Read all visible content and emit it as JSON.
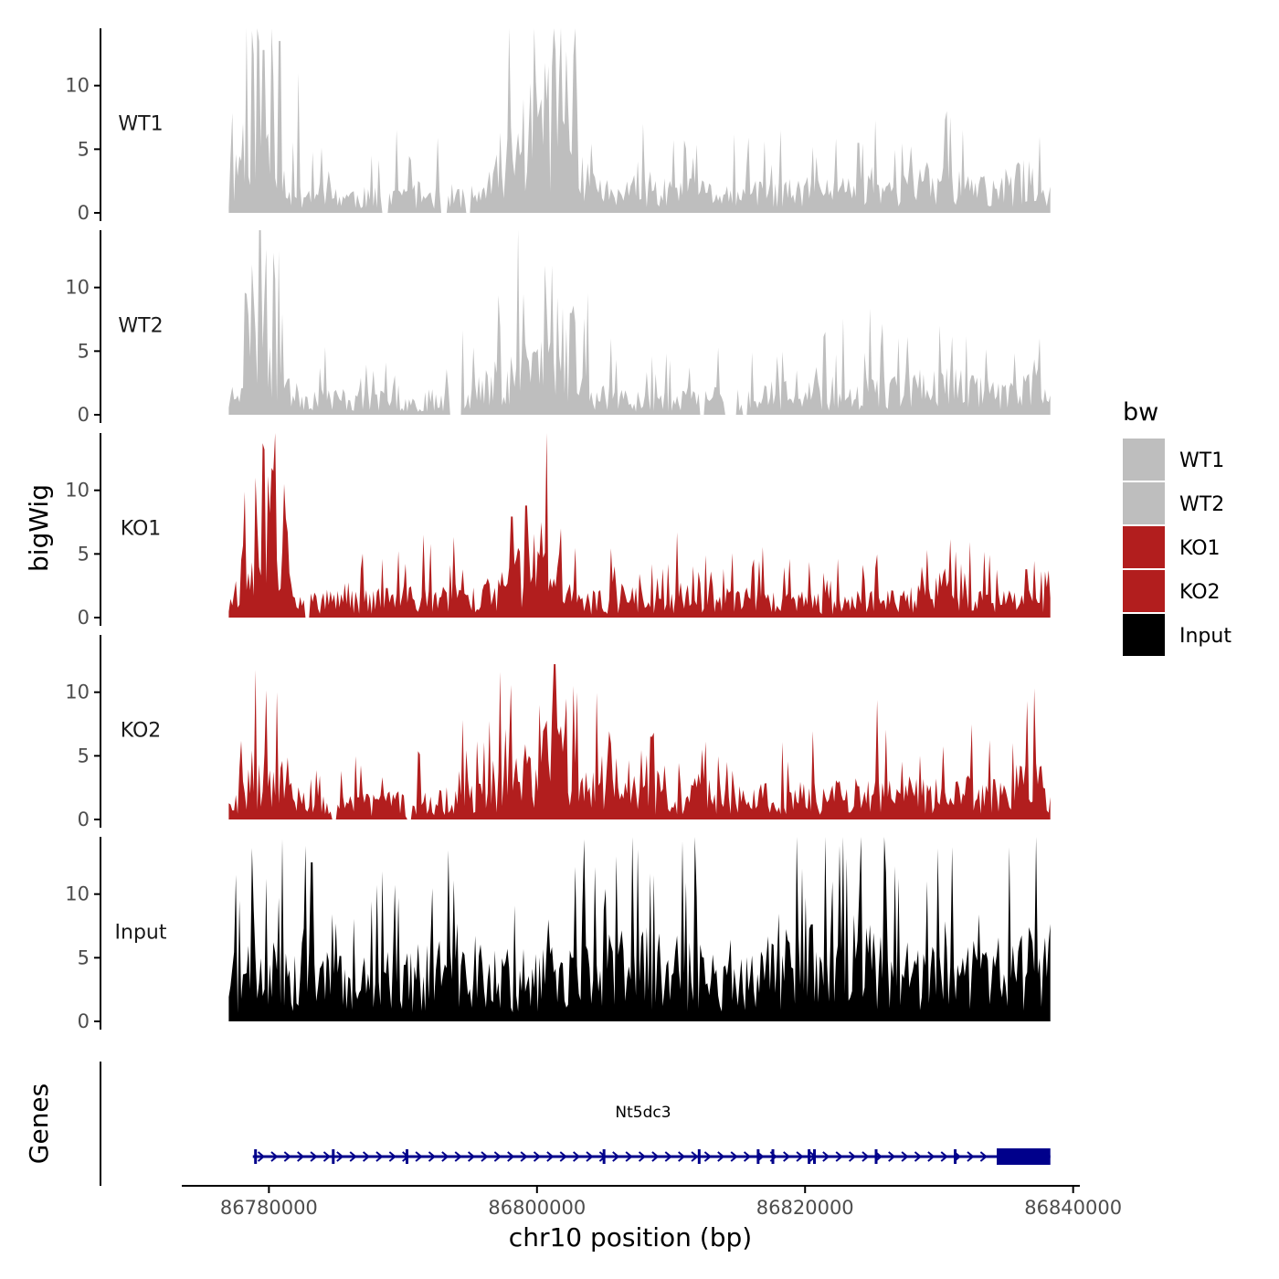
{
  "chart_data": {
    "type": "area",
    "ylabel": "bigWig",
    "xlabel": "chr10 position (bp)",
    "chromosome": "chr10",
    "xlim": [
      86773500,
      86840500
    ],
    "ylim": [
      0,
      14.5
    ],
    "y_ticks": [
      0,
      5,
      10
    ],
    "x_ticks": [
      86780000,
      86800000,
      86820000,
      86840000
    ],
    "x_tick_labels": [
      "86780000",
      "86800000",
      "86820000",
      "86840000"
    ],
    "data_range": [
      86777000,
      86838300
    ],
    "legend": {
      "title": "bw",
      "position": "right",
      "entries": [
        {
          "label": "WT1",
          "color": "#bebebe"
        },
        {
          "label": "WT2",
          "color": "#bebebe"
        },
        {
          "label": "KO1",
          "color": "#b21e1e"
        },
        {
          "label": "KO2",
          "color": "#b21e1e"
        },
        {
          "label": "Input",
          "color": "#000000"
        }
      ]
    },
    "series": [
      {
        "name": "WT1",
        "color": "#bebebe",
        "anchors": [
          [
            86777000,
            1.0
          ],
          [
            86779000,
            12.5
          ],
          [
            86780500,
            4.0
          ],
          [
            86782000,
            2.0
          ],
          [
            86787000,
            1.5
          ],
          [
            86791000,
            1.8
          ],
          [
            86796000,
            1.5
          ],
          [
            86800500,
            10.0
          ],
          [
            86802000,
            11.5
          ],
          [
            86803500,
            2.5
          ],
          [
            86806000,
            1.8
          ],
          [
            86810000,
            2.0
          ],
          [
            86815000,
            1.8
          ],
          [
            86820000,
            2.0
          ],
          [
            86826000,
            2.5
          ],
          [
            86830000,
            3.0
          ],
          [
            86834000,
            2.0
          ],
          [
            86837000,
            3.5
          ],
          [
            86838300,
            1.5
          ]
        ],
        "peaks": [
          [
            86779600,
            12.8
          ],
          [
            86780800,
            13.5
          ],
          [
            86782200,
            11.0
          ],
          [
            86801800,
            12.2
          ],
          [
            86801200,
            11.5
          ],
          [
            86803000,
            9.0
          ],
          [
            86789500,
            6.5
          ],
          [
            86830600,
            8.0
          ],
          [
            86818200,
            6.5
          ],
          [
            86824000,
            5.5
          ],
          [
            86837500,
            6.0
          ]
        ],
        "gaps": [
          [
            86788400,
            86788900
          ],
          [
            86792800,
            86793300
          ],
          [
            86794700,
            86795100
          ]
        ],
        "seed": 11
      },
      {
        "name": "WT2",
        "color": "#bebebe",
        "anchors": [
          [
            86777000,
            1.2
          ],
          [
            86779000,
            8.0
          ],
          [
            86780500,
            5.5
          ],
          [
            86782000,
            1.8
          ],
          [
            86787000,
            1.5
          ],
          [
            86791000,
            1.2
          ],
          [
            86796000,
            2.5
          ],
          [
            86799500,
            5.5
          ],
          [
            86801500,
            4.5
          ],
          [
            86803000,
            3.0
          ],
          [
            86806000,
            1.5
          ],
          [
            86810000,
            1.5
          ],
          [
            86815000,
            1.8
          ],
          [
            86820000,
            2.0
          ],
          [
            86826000,
            2.5
          ],
          [
            86830000,
            3.0
          ],
          [
            86834000,
            2.0
          ],
          [
            86838300,
            2.5
          ]
        ],
        "peaks": [
          [
            86778300,
            9.5
          ],
          [
            86779300,
            12.0
          ],
          [
            86779800,
            13.0
          ],
          [
            86780300,
            11.5
          ],
          [
            86799000,
            9.5
          ],
          [
            86801500,
            9.2
          ],
          [
            86802500,
            8.0
          ],
          [
            86805500,
            6.0
          ],
          [
            86821500,
            6.5
          ],
          [
            86827000,
            6.0
          ],
          [
            86830000,
            7.0
          ],
          [
            86837500,
            6.0
          ]
        ],
        "gaps": [
          [
            86793400,
            86794400
          ],
          [
            86812100,
            86812500
          ],
          [
            86814000,
            86814900
          ],
          [
            86815300,
            86815700
          ]
        ],
        "seed": 23
      },
      {
        "name": "KO1",
        "color": "#b21e1e",
        "anchors": [
          [
            86777000,
            1.0
          ],
          [
            86778500,
            6.0
          ],
          [
            86780000,
            9.0
          ],
          [
            86781500,
            6.0
          ],
          [
            86782500,
            1.5
          ],
          [
            86790000,
            1.8
          ],
          [
            86797000,
            2.0
          ],
          [
            86799000,
            5.0
          ],
          [
            86801000,
            4.5
          ],
          [
            86803500,
            1.5
          ],
          [
            86808000,
            2.0
          ],
          [
            86812000,
            2.0
          ],
          [
            86818000,
            1.5
          ],
          [
            86822000,
            1.5
          ],
          [
            86828000,
            1.8
          ],
          [
            86831000,
            3.0
          ],
          [
            86834000,
            1.5
          ],
          [
            86838300,
            1.8
          ]
        ],
        "peaks": [
          [
            86779700,
            13.2
          ],
          [
            86780400,
            11.5
          ],
          [
            86781100,
            10.5
          ],
          [
            86779000,
            11.0
          ],
          [
            86799200,
            8.8
          ],
          [
            86800300,
            7.5
          ],
          [
            86801800,
            7.0
          ],
          [
            86791500,
            6.5
          ],
          [
            86831200,
            5.2
          ],
          [
            86836500,
            3.8
          ]
        ],
        "gaps": [
          [
            86782700,
            86783100
          ]
        ],
        "seed": 37
      },
      {
        "name": "KO2",
        "color": "#b21e1e",
        "anchors": [
          [
            86777000,
            1.0
          ],
          [
            86779000,
            5.0
          ],
          [
            86781000,
            4.0
          ],
          [
            86783000,
            1.5
          ],
          [
            86788000,
            1.5
          ],
          [
            86793000,
            1.8
          ],
          [
            86797000,
            3.0
          ],
          [
            86800000,
            5.5
          ],
          [
            86801500,
            7.0
          ],
          [
            86803500,
            3.0
          ],
          [
            86808000,
            2.0
          ],
          [
            86813000,
            2.5
          ],
          [
            86818000,
            2.0
          ],
          [
            86823000,
            2.5
          ],
          [
            86830000,
            2.5
          ],
          [
            86835000,
            2.5
          ],
          [
            86837500,
            4.5
          ],
          [
            86838300,
            1.5
          ]
        ],
        "peaks": [
          [
            86779000,
            8.5
          ],
          [
            86780600,
            10.0
          ],
          [
            86801300,
            12.2
          ],
          [
            86802200,
            9.5
          ],
          [
            86803000,
            10.0
          ],
          [
            86800200,
            9.0
          ],
          [
            86808500,
            6.5
          ],
          [
            86812300,
            5.5
          ],
          [
            86836600,
            9.3
          ],
          [
            86835500,
            6.0
          ]
        ],
        "gaps": [
          [
            86784700,
            86785000
          ],
          [
            86790300,
            86790700
          ]
        ],
        "seed": 53
      },
      {
        "name": "Input",
        "color": "#000000",
        "anchors": [
          [
            86777000,
            4.0
          ],
          [
            86782000,
            5.0
          ],
          [
            86786000,
            3.5
          ],
          [
            86790000,
            4.5
          ],
          [
            86795000,
            5.0
          ],
          [
            86800000,
            4.0
          ],
          [
            86805000,
            5.0
          ],
          [
            86810000,
            5.5
          ],
          [
            86815000,
            4.5
          ],
          [
            86820000,
            5.5
          ],
          [
            86825000,
            5.5
          ],
          [
            86830000,
            4.5
          ],
          [
            86835000,
            5.0
          ],
          [
            86838300,
            6.0
          ]
        ],
        "peaks": [
          [
            86777500,
            11.5
          ],
          [
            86782700,
            13.8
          ],
          [
            86783200,
            12.5
          ],
          [
            86807500,
            13.5
          ],
          [
            86819800,
            12.0
          ],
          [
            86822600,
            13.8
          ],
          [
            86826700,
            12.2
          ],
          [
            86777800,
            9.5
          ]
        ],
        "gaps": [],
        "seed": 71
      }
    ],
    "genes_track": {
      "label": "Genes",
      "gene_name": "Nt5dc3",
      "strand": "+",
      "color": "#00008b",
      "start": 86778800,
      "end": 86838300,
      "thick_start": 86834300,
      "exons": [
        86779000,
        86784800,
        86790300,
        86805000,
        86812100,
        86816500,
        86817600,
        86820300,
        86820700,
        86825300,
        86831200
      ]
    }
  }
}
